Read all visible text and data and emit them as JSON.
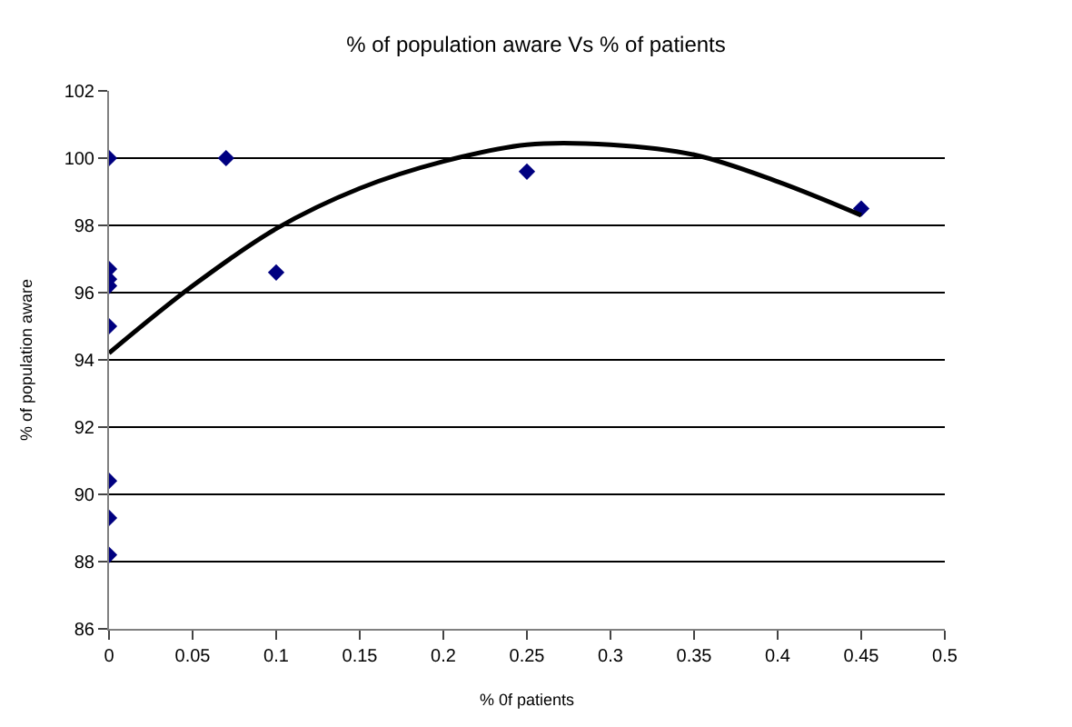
{
  "chart_data": {
    "type": "scatter",
    "title": "% of population aware Vs % of patients",
    "xlabel": "% 0f patients",
    "ylabel": "% of population aware",
    "series": [
      {
        "color": "#000080",
        "x": [
          0,
          0,
          0,
          0,
          0,
          0,
          0,
          0,
          0.07,
          0.1,
          0.25,
          0.45
        ],
        "values": [
          100,
          96.7,
          96.4,
          96.2,
          95.0,
          90.4,
          89.3,
          88.2,
          100,
          96.6,
          99.6,
          98.5
        ]
      },
      {
        "type": "line",
        "color": "#000000",
        "marker": "none",
        "x": [
          0,
          0.05,
          0.1,
          0.15,
          0.2,
          0.25,
          0.3,
          0.35,
          0.4,
          0.45
        ],
        "values": [
          94.2,
          96.2,
          97.9,
          99.1,
          99.9,
          100.4,
          100.4,
          100.1,
          99.3,
          98.3
        ]
      }
    ],
    "marker": "diamond",
    "grid": "y",
    "xlim": [
      0,
      0.5
    ],
    "xticks": [
      0,
      0.05,
      0.1,
      0.15,
      0.2,
      0.25,
      0.3,
      0.35,
      0.4,
      0.45,
      0.5
    ],
    "ylim": [
      86,
      102
    ],
    "yticks": [
      86,
      88,
      90,
      92,
      94,
      96,
      98,
      100,
      102
    ]
  }
}
